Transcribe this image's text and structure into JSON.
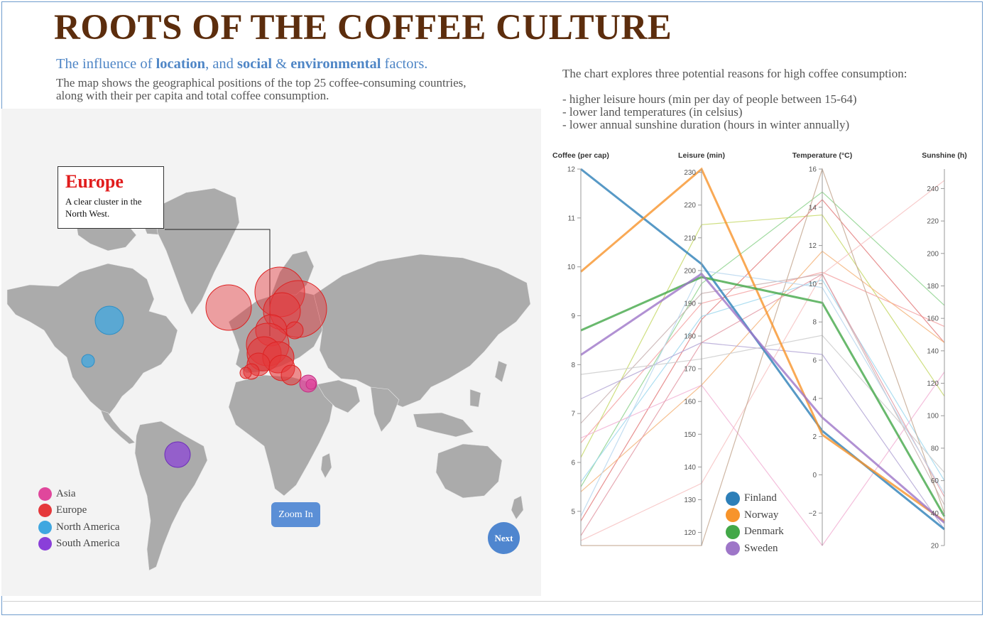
{
  "header": {
    "title": "ROOTS OF THE COFFEE CULTURE",
    "subtitle": {
      "p1": "The influence of ",
      "b1": "location",
      "p2": ", and ",
      "b2": "social",
      "p3": " & ",
      "b3": "environmental",
      "p4": " factors."
    },
    "description": "The map shows the geographical positions of the top 25 coffee-consuming countries, along with their per capita and total coffee consumption."
  },
  "intro": {
    "lead": "The chart explores three potential reasons for high coffee consumption:",
    "bullets": [
      "- higher leisure hours (min per day of people between 15-64)",
      "- lower land temperatures (in celsius)",
      "- lower annual sunshine duration (hours in winter annually)"
    ]
  },
  "map": {
    "annotation": {
      "title": "Europe",
      "text": "A clear cluster in the North West."
    },
    "legend": [
      {
        "label": "Asia",
        "color": "#e0479c"
      },
      {
        "label": "Europe",
        "color": "#e5383b"
      },
      {
        "label": "North America",
        "color": "#3fa7e0"
      },
      {
        "label": "South America",
        "color": "#8a3fd9"
      }
    ],
    "zoom_button": "Zoom In",
    "next_button": "Next"
  },
  "chart_data": {
    "type": "parallel-coordinates",
    "axes": [
      {
        "name": "Coffee (per cap)",
        "range": [
          4.3,
          12
        ],
        "ticks": [
          5,
          6,
          7,
          8,
          9,
          10,
          11,
          12
        ]
      },
      {
        "name": "Leisure (min)",
        "range": [
          116,
          231
        ],
        "ticks": [
          120,
          130,
          140,
          150,
          160,
          170,
          180,
          190,
          200,
          210,
          220,
          230
        ]
      },
      {
        "name": "Temperature (°C)",
        "range": [
          -3.7,
          16
        ],
        "ticks": [
          -2,
          0,
          2,
          4,
          6,
          8,
          10,
          12,
          14,
          16
        ]
      },
      {
        "name": "Sunshine (h)",
        "range": [
          20,
          252
        ],
        "ticks": [
          20,
          40,
          60,
          80,
          100,
          120,
          140,
          160,
          180,
          200,
          220,
          240
        ]
      }
    ],
    "highlighted": [
      {
        "name": "Finland",
        "color": "#2d7fb8",
        "values": [
          12,
          202,
          2.3,
          30
        ]
      },
      {
        "name": "Norway",
        "color": "#f7942b",
        "values": [
          9.9,
          231,
          2.1,
          35
        ]
      },
      {
        "name": "Denmark",
        "color": "#43a848",
        "values": [
          8.7,
          198,
          9.0,
          38
        ]
      },
      {
        "name": "Sweden",
        "color": "#9e76c8",
        "values": [
          8.2,
          199,
          3.0,
          34
        ]
      }
    ],
    "other_series": [
      {
        "color": "#c7d96b",
        "values": [
          6.1,
          214,
          13.6,
          112
        ]
      },
      {
        "color": "#8fd48f",
        "values": [
          5.5,
          196,
          14.8,
          168
        ]
      },
      {
        "color": "#f4a3a3",
        "values": [
          6.4,
          190,
          10.6,
          155
        ]
      },
      {
        "color": "#e47f7f",
        "values": [
          4.8,
          185,
          14.4,
          145
        ]
      },
      {
        "color": "#f5b57d",
        "values": [
          5.4,
          165,
          11.7,
          145
        ]
      },
      {
        "color": "#9fd8ee",
        "values": [
          5.6,
          186,
          10.2,
          60
        ]
      },
      {
        "color": "#f7c3c3",
        "values": [
          4.4,
          135,
          10.5,
          245
        ]
      },
      {
        "color": "#f2b3d5",
        "values": [
          6.5,
          165,
          -3.7,
          127
        ]
      },
      {
        "color": "#c9b3b3",
        "values": [
          6.8,
          193,
          10.5,
          45
        ]
      },
      {
        "color": "#b4a7d6",
        "values": [
          7.3,
          178,
          6.3,
          30
        ]
      },
      {
        "color": "#c6a993",
        "values": [
          4.3,
          116,
          16.0,
          40
        ]
      },
      {
        "color": "#cccccc",
        "values": [
          7.8,
          173,
          7.3,
          65
        ]
      },
      {
        "color": "#e39ba7",
        "values": [
          4.5,
          178,
          10.5,
          50
        ]
      },
      {
        "color": "#b8d7ef",
        "values": [
          4.9,
          200,
          9.8,
          52
        ]
      }
    ]
  }
}
